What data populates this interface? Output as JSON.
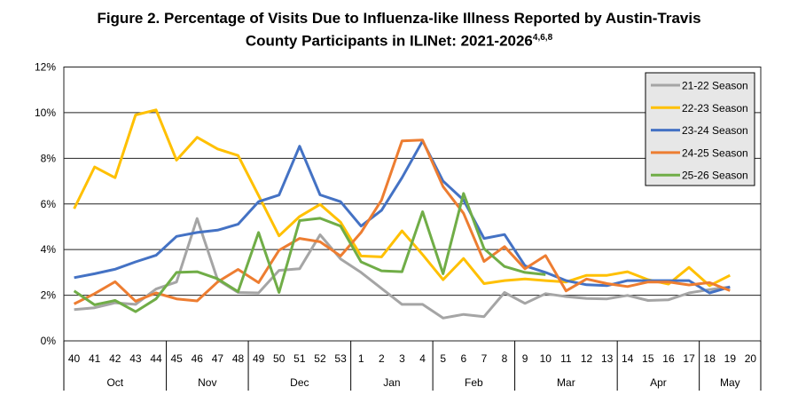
{
  "chart_data": {
    "type": "line",
    "title_line1": "Figure 2. Percentage of Visits Due to Influenza-like Illness Reported by Austin-Travis",
    "title_line2": "County Participants in ILINet: 2021-2026",
    "title_superscript": "4,6,8",
    "xlabel": "",
    "ylabel": "",
    "ylim": [
      0,
      12
    ],
    "yticks": [
      "0%",
      "2%",
      "4%",
      "6%",
      "8%",
      "10%",
      "12%"
    ],
    "grid": true,
    "legend_position": "top-right",
    "categories": [
      "40",
      "41",
      "42",
      "43",
      "44",
      "45",
      "46",
      "47",
      "48",
      "49",
      "50",
      "51",
      "52",
      "53",
      "1",
      "2",
      "3",
      "4",
      "5",
      "6",
      "7",
      "8",
      "9",
      "10",
      "11",
      "12",
      "13",
      "14",
      "15",
      "16",
      "17",
      "18",
      "19",
      "20"
    ],
    "months": [
      {
        "label": "Oct",
        "weeks": 5
      },
      {
        "label": "Nov",
        "weeks": 4
      },
      {
        "label": "Dec",
        "weeks": 5
      },
      {
        "label": "Jan",
        "weeks": 4
      },
      {
        "label": "Feb",
        "weeks": 4
      },
      {
        "label": "Mar",
        "weeks": 5
      },
      {
        "label": "Apr",
        "weeks": 4
      },
      {
        "label": "May",
        "weeks": 3
      }
    ],
    "series": [
      {
        "name": "21-22 Season",
        "color": "#a5a5a5",
        "values": [
          1.37,
          1.45,
          1.67,
          1.6,
          2.27,
          2.58,
          5.36,
          2.68,
          2.12,
          2.1,
          3.09,
          3.16,
          4.65,
          3.59,
          3.0,
          2.3,
          1.6,
          1.6,
          1.0,
          1.16,
          1.06,
          2.12,
          1.64,
          2.07,
          1.94,
          1.86,
          1.84,
          1.99,
          1.77,
          1.8,
          2.1,
          2.25,
          2.36,
          null
        ]
      },
      {
        "name": "22-23 Season",
        "color": "#ffc000",
        "values": [
          5.79,
          7.62,
          7.15,
          9.9,
          10.12,
          7.92,
          8.92,
          8.41,
          8.12,
          6.37,
          4.6,
          5.45,
          5.98,
          5.2,
          3.72,
          3.68,
          4.82,
          3.78,
          2.68,
          3.61,
          2.51,
          2.64,
          2.71,
          2.64,
          2.58,
          2.87,
          2.87,
          3.03,
          2.68,
          2.49,
          3.22,
          2.42,
          2.87,
          null
        ]
      },
      {
        "name": "23-24 Season",
        "color": "#4472c4",
        "values": [
          2.77,
          2.94,
          3.14,
          3.46,
          3.75,
          4.58,
          4.75,
          4.85,
          5.11,
          6.1,
          6.39,
          8.53,
          6.4,
          6.1,
          5.03,
          5.72,
          7.15,
          8.76,
          7.0,
          6.17,
          4.49,
          4.66,
          3.29,
          3.0,
          2.64,
          2.46,
          2.42,
          2.64,
          2.64,
          2.64,
          2.64,
          2.1,
          2.36,
          null
        ]
      },
      {
        "name": "24-25 Season",
        "color": "#ed7d31",
        "values": [
          1.62,
          2.07,
          2.59,
          1.74,
          2.1,
          1.84,
          1.75,
          2.58,
          3.13,
          2.55,
          3.97,
          4.49,
          4.34,
          3.72,
          4.75,
          6.17,
          8.76,
          8.8,
          6.76,
          5.59,
          3.48,
          4.13,
          3.16,
          3.74,
          2.19,
          2.71,
          2.51,
          2.38,
          2.58,
          2.58,
          2.45,
          2.55,
          2.2,
          null
        ]
      },
      {
        "name": "25-26 Season",
        "color": "#70ad47",
        "values": [
          2.19,
          1.58,
          1.77,
          1.28,
          1.84,
          3.0,
          3.03,
          2.72,
          2.16,
          4.75,
          2.12,
          5.27,
          5.37,
          5.03,
          3.46,
          3.07,
          3.03,
          5.66,
          2.94,
          6.46,
          4.04,
          3.26,
          3.0,
          2.9,
          null,
          null,
          null,
          null,
          null,
          null,
          null,
          null,
          null,
          null
        ]
      }
    ]
  }
}
